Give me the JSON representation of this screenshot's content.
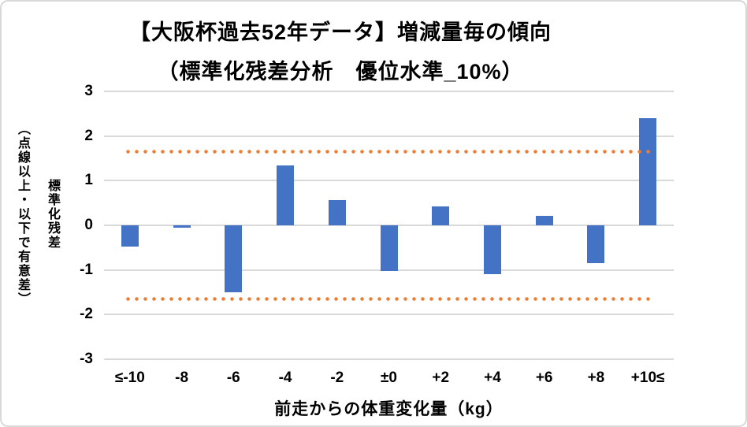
{
  "chart_data": {
    "type": "bar",
    "title": "【大阪杯過去52年データ】増減量毎の傾向（標準化残差分析　優位水準_10%）",
    "title_lines": [
      "【大阪杯過去52年データ】増減量毎の傾向",
      "（標準化残差分析　優位水準_10%）"
    ],
    "categories": [
      "≤-10",
      "-8",
      "-6",
      "-4",
      "-2",
      "±0",
      "+2",
      "+4",
      "+6",
      "+8",
      "+10≤"
    ],
    "values": [
      -0.47,
      -0.05,
      -1.5,
      1.35,
      0.57,
      -1.02,
      0.43,
      -1.1,
      0.21,
      -0.84,
      2.4
    ],
    "xlabel": "前走からの体重変化量（kg）",
    "ylabel_main": "標準化残差",
    "ylabel_sub": "（点線以上・以下で有意差）",
    "ylim": [
      -3,
      3
    ],
    "yticks": [
      "3",
      "2",
      "1",
      "0",
      "-1",
      "-2",
      "-3"
    ],
    "grid": true,
    "legend": "none",
    "significance_lines": {
      "upper": 1.645,
      "lower": -1.645,
      "style": "dotted"
    },
    "colors": {
      "bar": "#4472C4",
      "dotted_line": "#ED7D31",
      "gridline": "#D9D9D9",
      "border": "#D9D9D9",
      "text": "#000000"
    }
  }
}
